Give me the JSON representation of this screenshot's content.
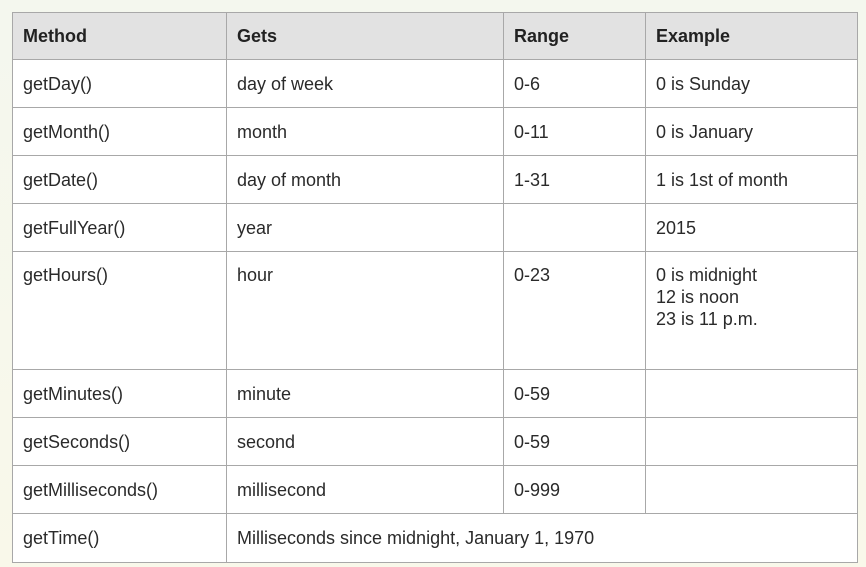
{
  "table": {
    "headers": [
      "Method",
      "Gets",
      "Range",
      "Example"
    ],
    "rows": [
      {
        "method": "getDay()",
        "gets": "day of week",
        "range": "0-6",
        "example": [
          "0 is Sunday"
        ]
      },
      {
        "method": "getMonth()",
        "gets": "month",
        "range": "0-11",
        "example": [
          "0 is January"
        ]
      },
      {
        "method": "getDate()",
        "gets": "day of month",
        "range": "1-31",
        "example": [
          "1 is 1st of month"
        ]
      },
      {
        "method": "getFullYear()",
        "gets": "year",
        "range": "",
        "example": [
          "2015"
        ]
      },
      {
        "method": "getHours()",
        "gets": "hour",
        "range": "0-23",
        "example": [
          "0 is midnight",
          "12 is noon",
          "23 is 11 p.m."
        ]
      },
      {
        "method": "getMinutes()",
        "gets": "minute",
        "range": "0-59",
        "example": []
      },
      {
        "method": "getSeconds()",
        "gets": "second",
        "range": "0-59",
        "example": []
      },
      {
        "method": "getMilliseconds()",
        "gets": "millisecond",
        "range": "0-999",
        "example": []
      }
    ],
    "last_row": {
      "method": "getTime()",
      "description": "Milliseconds since midnight, January 1, 1970"
    }
  }
}
